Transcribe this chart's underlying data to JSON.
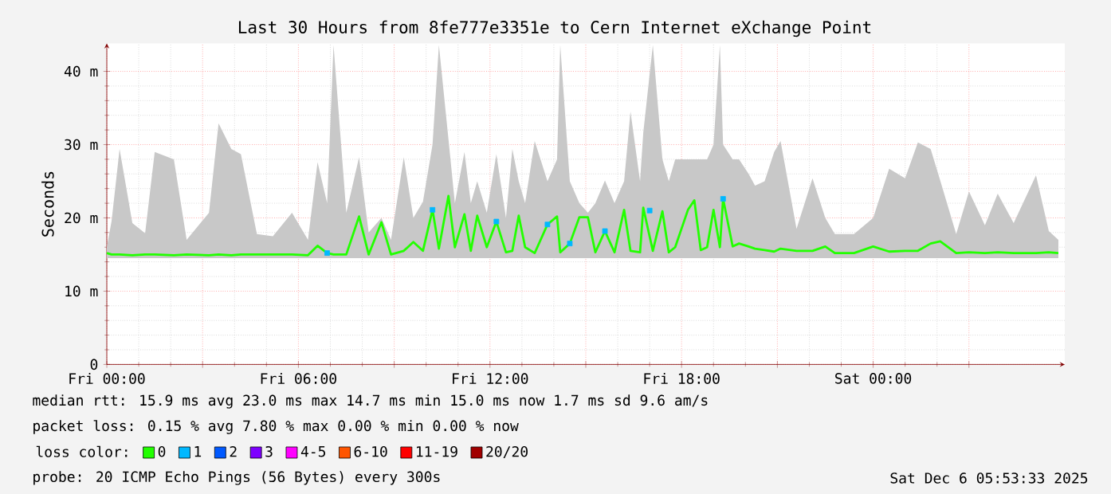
{
  "chart_data": {
    "type": "line",
    "title": "Last 30 Hours from 8fe777e3351e to Cern Internet eXchange Point",
    "ylabel": "Seconds",
    "legend_title": "loss color:",
    "legend": "bottom",
    "grid": true,
    "xlim": [
      "2025-12-05T00:00",
      "2025-12-06T06:00"
    ],
    "xticks": [
      {
        "value": "2025-12-05T00:00",
        "label": "Fri 00:00"
      },
      {
        "value": "2025-12-05T03:00",
        "label": null
      },
      {
        "value": "2025-12-05T06:00",
        "label": "Fri 06:00"
      },
      {
        "value": "2025-12-05T09:00",
        "label": null
      },
      {
        "value": "2025-12-05T12:00",
        "label": "Fri 12:00"
      },
      {
        "value": "2025-12-05T15:00",
        "label": null
      },
      {
        "value": "2025-12-05T18:00",
        "label": "Fri 18:00"
      },
      {
        "value": "2025-12-05T21:00",
        "label": null
      },
      {
        "value": "2025-12-06T00:00",
        "label": "Sat 00:00"
      },
      {
        "value": "2025-12-06T03:00",
        "label": null
      }
    ],
    "ylim": [
      0,
      43.8
    ],
    "yticks": [
      0,
      {
        "value": 10,
        "label": "10 m"
      },
      {
        "value": 20,
        "label": "20 m"
      },
      {
        "value": 30,
        "label": "30 m"
      },
      {
        "value": 40,
        "label": "40 m"
      }
    ],
    "annotations": [
      "median rtt:  15.9 ms avg  23.0 ms max  14.7 ms min  15.0 ms now  1.7 ms sd  9.6   am/s",
      "packet loss: 0.15 % avg  7.80 % max  0.00 % min  0.00 % now",
      "probe:  20 ICMP Echo Pings (56 Bytes) every 300s",
      "Sat Dec  6 05:53:33 2025"
    ],
    "series": [
      {
        "name": "0",
        "color": "#22ff00",
        "x": [
          "2025-12-05T00:00",
          "2025-12-05T00:09",
          "2025-12-05T00:24",
          "2025-12-05T00:48",
          "2025-12-05T01:12",
          "2025-12-05T01:30",
          "2025-12-05T02:06",
          "2025-12-05T02:30",
          "2025-12-05T03:12",
          "2025-12-05T03:30",
          "2025-12-05T03:54",
          "2025-12-05T04:12",
          "2025-12-05T04:42",
          "2025-12-05T05:12",
          "2025-12-05T05:48",
          "2025-12-05T06:18",
          "2025-12-05T06:36",
          "2025-12-05T06:54",
          "2025-12-05T07:06",
          "2025-12-05T07:30",
          "2025-12-05T07:54",
          "2025-12-05T08:12",
          "2025-12-05T08:36",
          "2025-12-05T08:54",
          "2025-12-05T09:18",
          "2025-12-05T09:36",
          "2025-12-05T09:54",
          "2025-12-05T10:12",
          "2025-12-05T10:24",
          "2025-12-05T10:42",
          "2025-12-05T10:54",
          "2025-12-05T11:12",
          "2025-12-05T11:24",
          "2025-12-05T11:36",
          "2025-12-05T11:54",
          "2025-12-05T12:12",
          "2025-12-05T12:30",
          "2025-12-05T12:42",
          "2025-12-05T12:54",
          "2025-12-05T13:06",
          "2025-12-05T13:24",
          "2025-12-05T13:48",
          "2025-12-05T14:06",
          "2025-12-05T14:12",
          "2025-12-05T14:30",
          "2025-12-05T14:48",
          "2025-12-05T15:04",
          "2025-12-05T15:18",
          "2025-12-05T15:36",
          "2025-12-05T15:54",
          "2025-12-05T16:12",
          "2025-12-05T16:24",
          "2025-12-05T16:42",
          "2025-12-05T16:48",
          "2025-12-05T17:06",
          "2025-12-05T17:24",
          "2025-12-05T17:36",
          "2025-12-05T17:48",
          "2025-12-05T18:12",
          "2025-12-05T18:24",
          "2025-12-05T18:36",
          "2025-12-05T18:48",
          "2025-12-05T19:00",
          "2025-12-05T19:12",
          "2025-12-05T19:18",
          "2025-12-05T19:36",
          "2025-12-05T19:48",
          "2025-12-05T20:06",
          "2025-12-05T20:18",
          "2025-12-05T20:36",
          "2025-12-05T20:54",
          "2025-12-05T21:06",
          "2025-12-05T21:36",
          "2025-12-05T22:06",
          "2025-12-05T22:30",
          "2025-12-05T22:48",
          "2025-12-05T23:24",
          "2025-12-06T00:00",
          "2025-12-06T00:30",
          "2025-12-06T01:00",
          "2025-12-06T01:24",
          "2025-12-06T01:48",
          "2025-12-06T02:06",
          "2025-12-06T02:36",
          "2025-12-06T03:00",
          "2025-12-06T03:30",
          "2025-12-06T03:54",
          "2025-12-06T04:24",
          "2025-12-06T05:06",
          "2025-12-06T05:30",
          "2025-12-06T05:48"
        ],
        "values": [
          15.2,
          15,
          15,
          14.9,
          15,
          15,
          14.9,
          15,
          14.9,
          15,
          14.9,
          15,
          15,
          15,
          15,
          14.9,
          16.2,
          15.2,
          15,
          15,
          20.2,
          15,
          19.4,
          15,
          15.5,
          16.7,
          15.5,
          21.1,
          15.8,
          23,
          16,
          20.5,
          15.5,
          20.3,
          16,
          19.5,
          15.3,
          15.5,
          20.3,
          16,
          15.2,
          19.1,
          20.2,
          15.3,
          16.5,
          20.1,
          20.1,
          15.3,
          18.2,
          15.3,
          21.1,
          15.5,
          15.3,
          21.4,
          15.5,
          20.9,
          15.3,
          16,
          21.1,
          22.4,
          15.6,
          16,
          21.1,
          16,
          22.6,
          16.1,
          16.5,
          16.1,
          15.8,
          15.6,
          15.4,
          15.8,
          15.5,
          15.5,
          16.1,
          15.2,
          15.2,
          16.1,
          15.4,
          15.5,
          15.5,
          16.5,
          16.8,
          15.2,
          15.3,
          15.2,
          15.3,
          15.2,
          15.2,
          15.3,
          15.2
        ],
        "lower": [
          14.5,
          14.5,
          14.5,
          14.5,
          14.5,
          14.5,
          14.5,
          14.5,
          14.5,
          14.5,
          14.5,
          14.5,
          14.5,
          14.5,
          14.5,
          14.5,
          14.5,
          14.5,
          14.5,
          14.5,
          14.5,
          14.5,
          14.5,
          14.5,
          14.5,
          14.5,
          14.5,
          14.5,
          14.5,
          14.5,
          14.5,
          14.5,
          14.5,
          14.5,
          14.5,
          14.5,
          14.5,
          14.5,
          14.5,
          14.5,
          14.5,
          14.5,
          14.5,
          14.5,
          14.5,
          14.5,
          14.5,
          14.5,
          14.5,
          14.5,
          14.5,
          14.5,
          14.5,
          14.5,
          14.5,
          14.5,
          14.5,
          14.5,
          14.5,
          14.5,
          14.5,
          14.5,
          14.5,
          14.5,
          14.5,
          14.5,
          14.5,
          14.5,
          14.5,
          14.5,
          14.5,
          14.5,
          14.5,
          14.5,
          14.5,
          14.5,
          14.5,
          14.5,
          14.5,
          14.5,
          14.5,
          14.5,
          14.5,
          14.5,
          14.5,
          14.5,
          14.5,
          14.5,
          14.5,
          14.5,
          14.5
        ],
        "upper": [
          16,
          19.6,
          29.4,
          19.3,
          17.9,
          29,
          28,
          17,
          20.7,
          32.9,
          29.4,
          28.7,
          17.8,
          17.5,
          20.7,
          17,
          27.6,
          22,
          43.6,
          20.7,
          28.3,
          18,
          20,
          17,
          28.3,
          20,
          22.2,
          30,
          43.6,
          30.7,
          22,
          29,
          22,
          25,
          20.7,
          28.7,
          20,
          29.4,
          25,
          22,
          30.5,
          25,
          28,
          43.6,
          25,
          22,
          20.7,
          22,
          25.1,
          22,
          25,
          34.5,
          25,
          31.6,
          43.6,
          28,
          25,
          28,
          28,
          28,
          28,
          28,
          30,
          43.6,
          30,
          28,
          28,
          26,
          24.4,
          25,
          29,
          30.5,
          18.5,
          25.4,
          20,
          17.8,
          17.8,
          20,
          26.7,
          25.4,
          30.3,
          29.4,
          25.1,
          17.8,
          23.6,
          19,
          23.3,
          19.3,
          25.8,
          18.2,
          17
        ]
      },
      {
        "name": "1",
        "type": "scatter",
        "color": "#00b8ff",
        "x": [
          "2025-12-05T06:54",
          "2025-12-05T10:12",
          "2025-12-05T12:12",
          "2025-12-05T13:48",
          "2025-12-05T14:30",
          "2025-12-05T15:36",
          "2025-12-05T17:00",
          "2025-12-05T19:18"
        ],
        "values": [
          15.2,
          21.1,
          19.5,
          19.1,
          16.5,
          18.2,
          21,
          22.6
        ]
      },
      {
        "name": "2",
        "type": "scatter",
        "color": "#0059ff"
      },
      {
        "name": "3",
        "type": "scatter",
        "color": "#7e00ff"
      },
      {
        "name": "4-5",
        "type": "scatter",
        "color": "#ff00ff"
      },
      {
        "name": "6-10",
        "type": "scatter",
        "color": "#ff5500"
      },
      {
        "name": "11-19",
        "type": "scatter",
        "color": "#ff0000"
      },
      {
        "name": "20/20",
        "type": "scatter",
        "color": "#a10000"
      }
    ]
  }
}
